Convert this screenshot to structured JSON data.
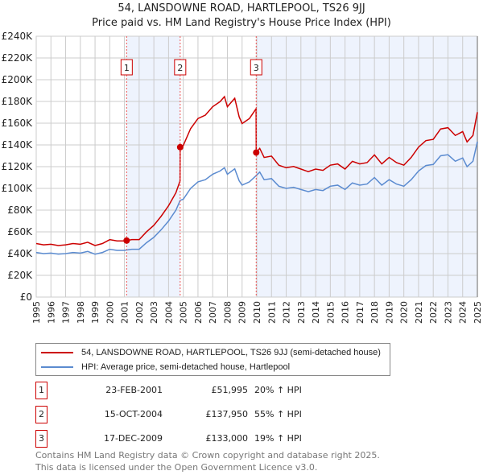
{
  "title_line1": "54, LANSDOWNE ROAD, HARTLEPOOL, TS26 9JJ",
  "title_line2": "Price paid vs. HM Land Registry's House Price Index (HPI)",
  "chart_data": {
    "type": "line",
    "ylim": [
      0,
      240000
    ],
    "xlim": [
      1995,
      2025
    ],
    "yticks": [
      0,
      20000,
      40000,
      60000,
      80000,
      100000,
      120000,
      140000,
      160000,
      180000,
      200000,
      220000,
      240000
    ],
    "ytick_labels": [
      "£0",
      "£20K",
      "£40K",
      "£60K",
      "£80K",
      "£100K",
      "£120K",
      "£140K",
      "£160K",
      "£180K",
      "£200K",
      "£220K",
      "£240K"
    ],
    "xtick_labels": [
      "1995",
      "1996",
      "1997",
      "1998",
      "1999",
      "2000",
      "2001",
      "2002",
      "2003",
      "2004",
      "2005",
      "2006",
      "2007",
      "2008",
      "2009",
      "2010",
      "2011",
      "2012",
      "2013",
      "2014",
      "2015",
      "2016",
      "2017",
      "2018",
      "2019",
      "2020",
      "2021",
      "2022",
      "2023",
      "2024",
      "2025"
    ],
    "grid": true,
    "colors": {
      "property": "#cc0000",
      "hpi": "#5b8bd0",
      "shade": "#eef3fd",
      "marker_line": "#ee5555"
    },
    "series": [
      {
        "name": "54, LANSDOWNE ROAD, HARTLEPOOL, TS26 9JJ (semi-detached house)",
        "derived_from_hpi": true
      },
      {
        "name": "HPI: Average price, semi-detached house, Hartlepool",
        "x": [
          1995,
          1995.5,
          1996,
          1996.5,
          1997,
          1997.5,
          1998,
          1998.5,
          1999,
          1999.5,
          2000,
          2000.5,
          2001,
          2001.15,
          2001.5,
          2002,
          2002.5,
          2003,
          2003.5,
          2004,
          2004.5,
          2004.79,
          2005,
          2005.5,
          2006,
          2006.5,
          2007,
          2007.5,
          2007.8,
          2008,
          2008.5,
          2008.8,
          2009,
          2009.5,
          2009.96,
          2010.2,
          2010.5,
          2011,
          2011.5,
          2012,
          2012.5,
          2013,
          2013.5,
          2014,
          2014.5,
          2015,
          2015.5,
          2016,
          2016.5,
          2017,
          2017.5,
          2018,
          2018.5,
          2019,
          2019.5,
          2020,
          2020.5,
          2021,
          2021.5,
          2022,
          2022.5,
          2023,
          2023.5,
          2024,
          2024.3,
          2024.7,
          2025
        ],
        "y": [
          41000,
          40000,
          40500,
          39500,
          40000,
          41000,
          40500,
          42000,
          39500,
          41000,
          44000,
          43000,
          43000,
          43300,
          44000,
          44000,
          50000,
          55000,
          62000,
          70000,
          80000,
          89000,
          90000,
          100000,
          106000,
          108000,
          113000,
          116000,
          119000,
          113000,
          118000,
          107000,
          103000,
          106000,
          111800,
          115000,
          108000,
          109000,
          102000,
          100000,
          101000,
          99000,
          97000,
          99000,
          98000,
          102000,
          103000,
          99000,
          105000,
          103000,
          104000,
          110000,
          103000,
          108000,
          104000,
          102000,
          108000,
          116000,
          121000,
          122000,
          130000,
          131000,
          125000,
          128000,
          120000,
          125000,
          143000
        ]
      }
    ],
    "sales": [
      {
        "n": "1",
        "x": 2001.15,
        "date": "23-FEB-2001",
        "price": 51995,
        "price_label": "£51,995",
        "hpi": "20% ↑ HPI"
      },
      {
        "n": "2",
        "x": 2004.79,
        "date": "15-OCT-2004",
        "price": 137950,
        "price_label": "£137,950",
        "hpi": "55% ↑ HPI"
      },
      {
        "n": "3",
        "x": 2009.96,
        "date": "17-DEC-2009",
        "price": 133000,
        "price_label": "£133,000",
        "hpi": "19% ↑ HPI"
      }
    ]
  },
  "footer_line1": "Contains HM Land Registry data © Crown copyright and database right 2025.",
  "footer_line2": "This data is licensed under the Open Government Licence v3.0."
}
